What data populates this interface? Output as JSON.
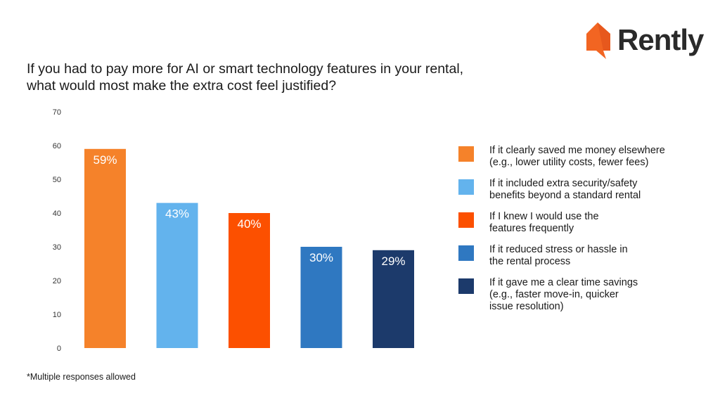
{
  "brand": {
    "name": "Rently",
    "icon": "house-speech-bubble-icon",
    "color": "#f26522"
  },
  "title_lines": [
    "If you had to pay more for AI or smart technology features in your rental,",
    "what would most make the extra cost feel justified?"
  ],
  "footnote": "*Multiple responses allowed",
  "chart_data": {
    "type": "bar",
    "title": "If you had to pay more for AI or smart technology features in your rental, what would most make the extra cost feel justified?",
    "xlabel": "",
    "ylabel": "",
    "ylim": [
      0,
      70
    ],
    "yticks": [
      0,
      10,
      20,
      30,
      40,
      50,
      60,
      70
    ],
    "grid": false,
    "legend_position": "right",
    "categories": [
      "If it clearly saved me money elsewhere (e.g., lower utility costs, fewer fees)",
      "If it included extra security/safety benefits beyond a standard rental",
      "If I knew I would use the features frequently",
      "If it reduced stress or hassle in the rental process",
      "If it gave me a clear time savings (e.g., faster move-in, quicker issue resolution)"
    ],
    "values": [
      59,
      43,
      40,
      30,
      29
    ],
    "value_labels": [
      "59%",
      "43%",
      "40%",
      "30%",
      "29%"
    ],
    "colors": [
      "#f5822a",
      "#63b3ed",
      "#fc5000",
      "#2f78c1",
      "#1c3a6b"
    ],
    "legend": [
      {
        "lines": [
          "If it clearly saved me money elsewhere",
          "(e.g., lower utility costs, fewer fees)"
        ],
        "color": "#f5822a"
      },
      {
        "lines": [
          "If it included extra security/safety",
          "benefits beyond a standard rental"
        ],
        "color": "#63b3ed"
      },
      {
        "lines": [
          "If I knew I would use the",
          "features frequently"
        ],
        "color": "#fc5000"
      },
      {
        "lines": [
          "If it reduced stress or hassle in",
          "the rental process"
        ],
        "color": "#2f78c1"
      },
      {
        "lines": [
          "If it gave me a clear time savings",
          "(e.g., faster move-in, quicker",
          "issue resolution)"
        ],
        "color": "#1c3a6b"
      }
    ]
  }
}
